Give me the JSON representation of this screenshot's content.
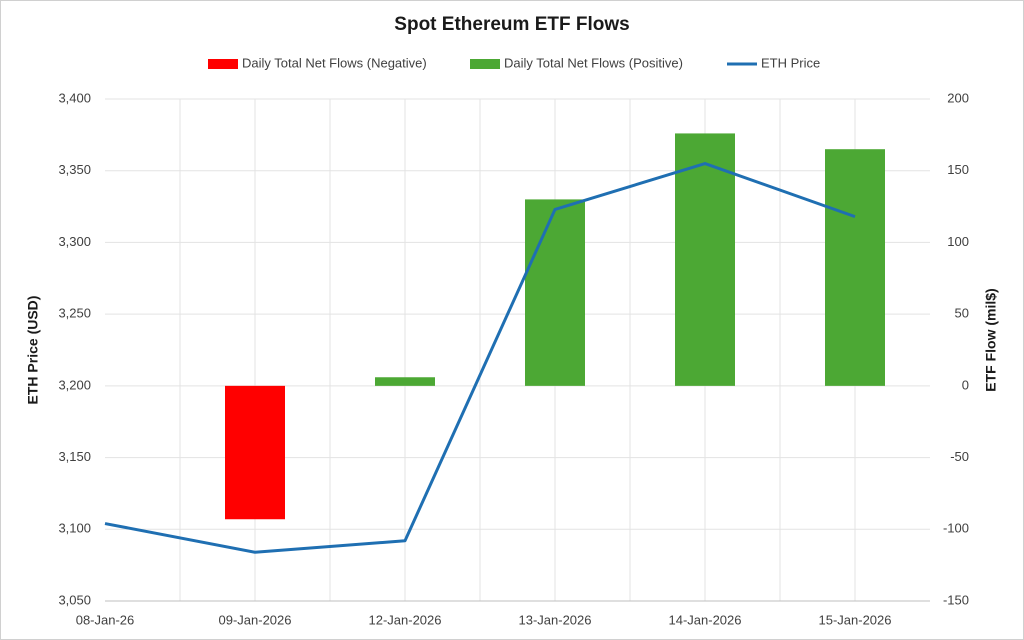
{
  "chart_data": {
    "type": "bar-line",
    "title": "Spot Ethereum ETF Flows",
    "y_label": "ETH Price (USD)",
    "y2_label": "ETF Flow (mil$)",
    "categories": [
      "08-Jan-26",
      "09-Jan-2026",
      "12-Jan-2026",
      "13-Jan-2026",
      "14-Jan-2026",
      "15-Jan-2026"
    ],
    "series": [
      {
        "name": "Daily Total Net Flows (Negative)",
        "type": "bar",
        "axis": "y2",
        "color": "#ff0000",
        "values": [
          null,
          -93,
          null,
          null,
          null,
          null
        ]
      },
      {
        "name": "Daily Total Net Flows (Positive)",
        "type": "bar",
        "axis": "y2",
        "color": "#4ca834",
        "values": [
          null,
          null,
          6,
          130,
          176,
          165
        ]
      },
      {
        "name": "ETH Price",
        "type": "line",
        "axis": "y",
        "color": "#1f6fb2",
        "values": [
          3104,
          3084,
          3092,
          3323,
          3355,
          3318
        ]
      }
    ],
    "ylim": [
      3050,
      3400
    ],
    "yticks": [
      {
        "value": 3050,
        "label": "3,050"
      },
      {
        "value": 3100,
        "label": "3,100"
      },
      {
        "value": 3150,
        "label": "3,150"
      },
      {
        "value": 3200,
        "label": "3,200"
      },
      {
        "value": 3250,
        "label": "3,250"
      },
      {
        "value": 3300,
        "label": "3,300"
      },
      {
        "value": 3350,
        "label": "3,350"
      },
      {
        "value": 3400,
        "label": "3,400"
      }
    ],
    "y2lim": [
      -150,
      200
    ],
    "y2ticks": [
      -150,
      -100,
      -50,
      0,
      50,
      100,
      150,
      200
    ],
    "grid": true,
    "legend": "top"
  }
}
